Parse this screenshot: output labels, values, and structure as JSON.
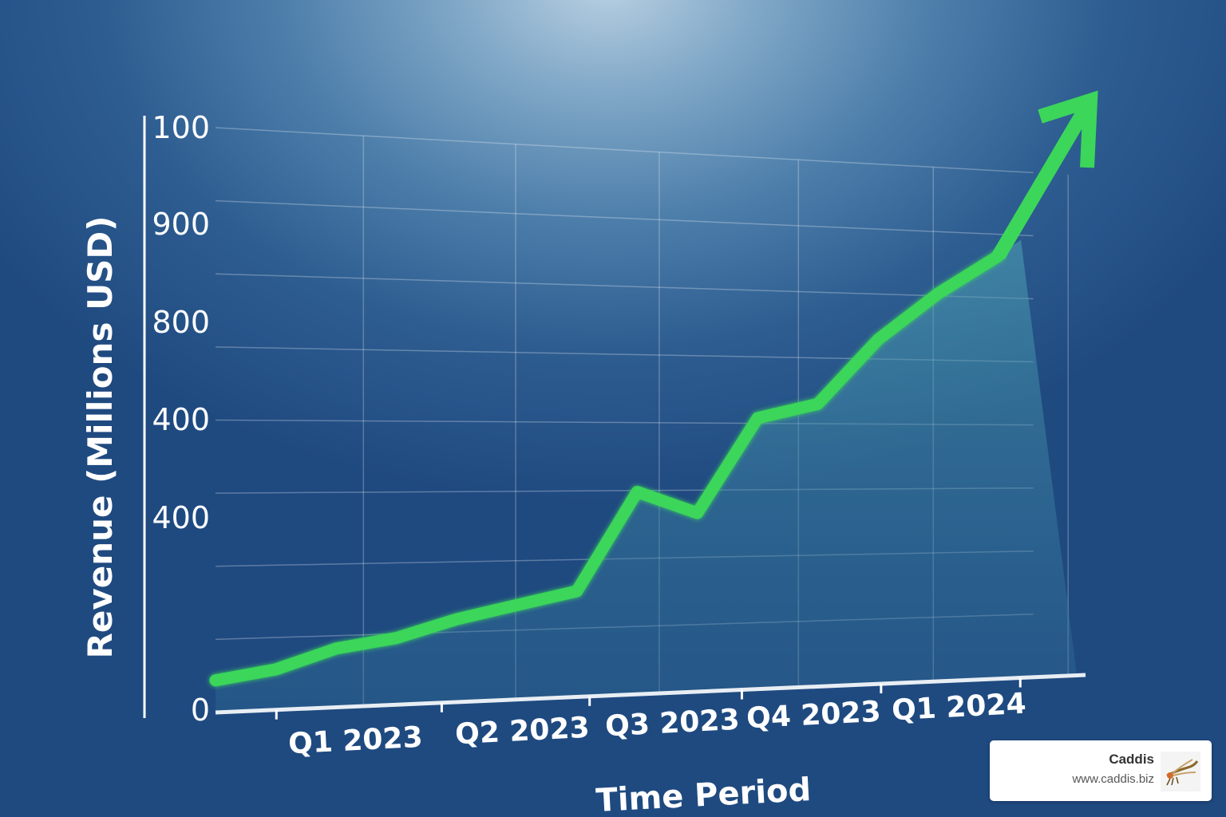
{
  "chart_data": {
    "type": "area",
    "title": "",
    "xlabel": "Time Period",
    "ylabel": "Revenue (Millions USD)",
    "y_tick_labels": [
      "0",
      "",
      "400",
      "400",
      "800",
      "900",
      "100"
    ],
    "x_tick_labels": [
      "Q1 2023",
      "Q2 2023",
      "Q3 2023",
      "Q4 2023",
      "Q1 2024"
    ],
    "series": [
      {
        "values": [
          0.22,
          0.28,
          0.41,
          0.47,
          0.59,
          0.68,
          0.77,
          1.49,
          1.33,
          2.04,
          2.15,
          2.65,
          3.02,
          3.33
        ]
      }
    ],
    "grid": true,
    "trend": "upward",
    "colors": {
      "line": "#3bd65a",
      "fill": "#3c8aa6"
    }
  },
  "brand": {
    "name": "Caddis",
    "url": "www.caddis.biz",
    "logo_icon": "caddisfly-icon"
  }
}
